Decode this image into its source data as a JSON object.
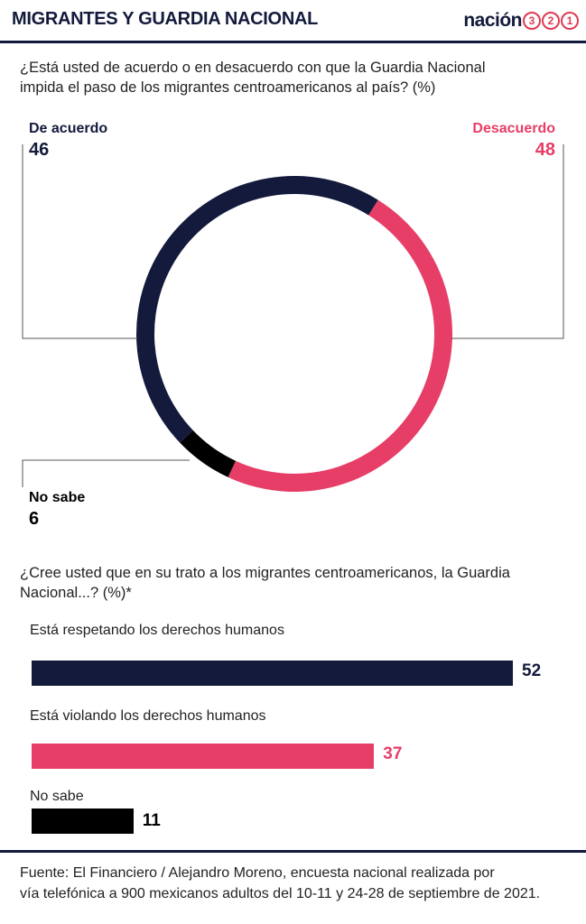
{
  "header": {
    "title": "MIGRANTES Y GUARDIA NACIONAL",
    "logo_word": "nación",
    "logo_digits": [
      "3",
      "2",
      "1"
    ]
  },
  "colors": {
    "navy": "#131a3b",
    "pink": "#e63e66",
    "black": "#000000"
  },
  "chart_data": [
    {
      "type": "pie",
      "variant": "donut",
      "question": [
        "¿Está usted de acuerdo o en desacuerdo con que la Guardia Nacional",
        "impida el paso de los migrantes centroamericanos al país? (%)"
      ],
      "slices": [
        {
          "label": "De acuerdo",
          "value": 46,
          "display": "46",
          "color": "#131a3b"
        },
        {
          "label": "Desacuerdo",
          "value": 48,
          "display": "48",
          "color": "#e63e66"
        },
        {
          "label": "No sabe",
          "value": 6,
          "display": "6",
          "color": "#000000"
        }
      ]
    },
    {
      "type": "bar",
      "orientation": "horizontal",
      "question": [
        "¿Cree usted que en su trato a los migrantes centroamericanos, la Guardia",
        "Nacional...? (%)*"
      ],
      "categories": [
        "Está respetando los derechos humanos",
        "Está violando los derechos humanos",
        "No sabe"
      ],
      "values": [
        52,
        37,
        11
      ],
      "value_labels": [
        "52",
        "37",
        "11"
      ],
      "colors": [
        "#131a3b",
        "#e63e66",
        "#000000"
      ]
    }
  ],
  "footer": {
    "lines": [
      "Fuente: El Financiero / Alejandro Moreno, encuesta nacional realizada por",
      "vía telefónica a 900 mexicanos adultos del 10-11 y 24-28 de septiembre de 2021."
    ]
  }
}
